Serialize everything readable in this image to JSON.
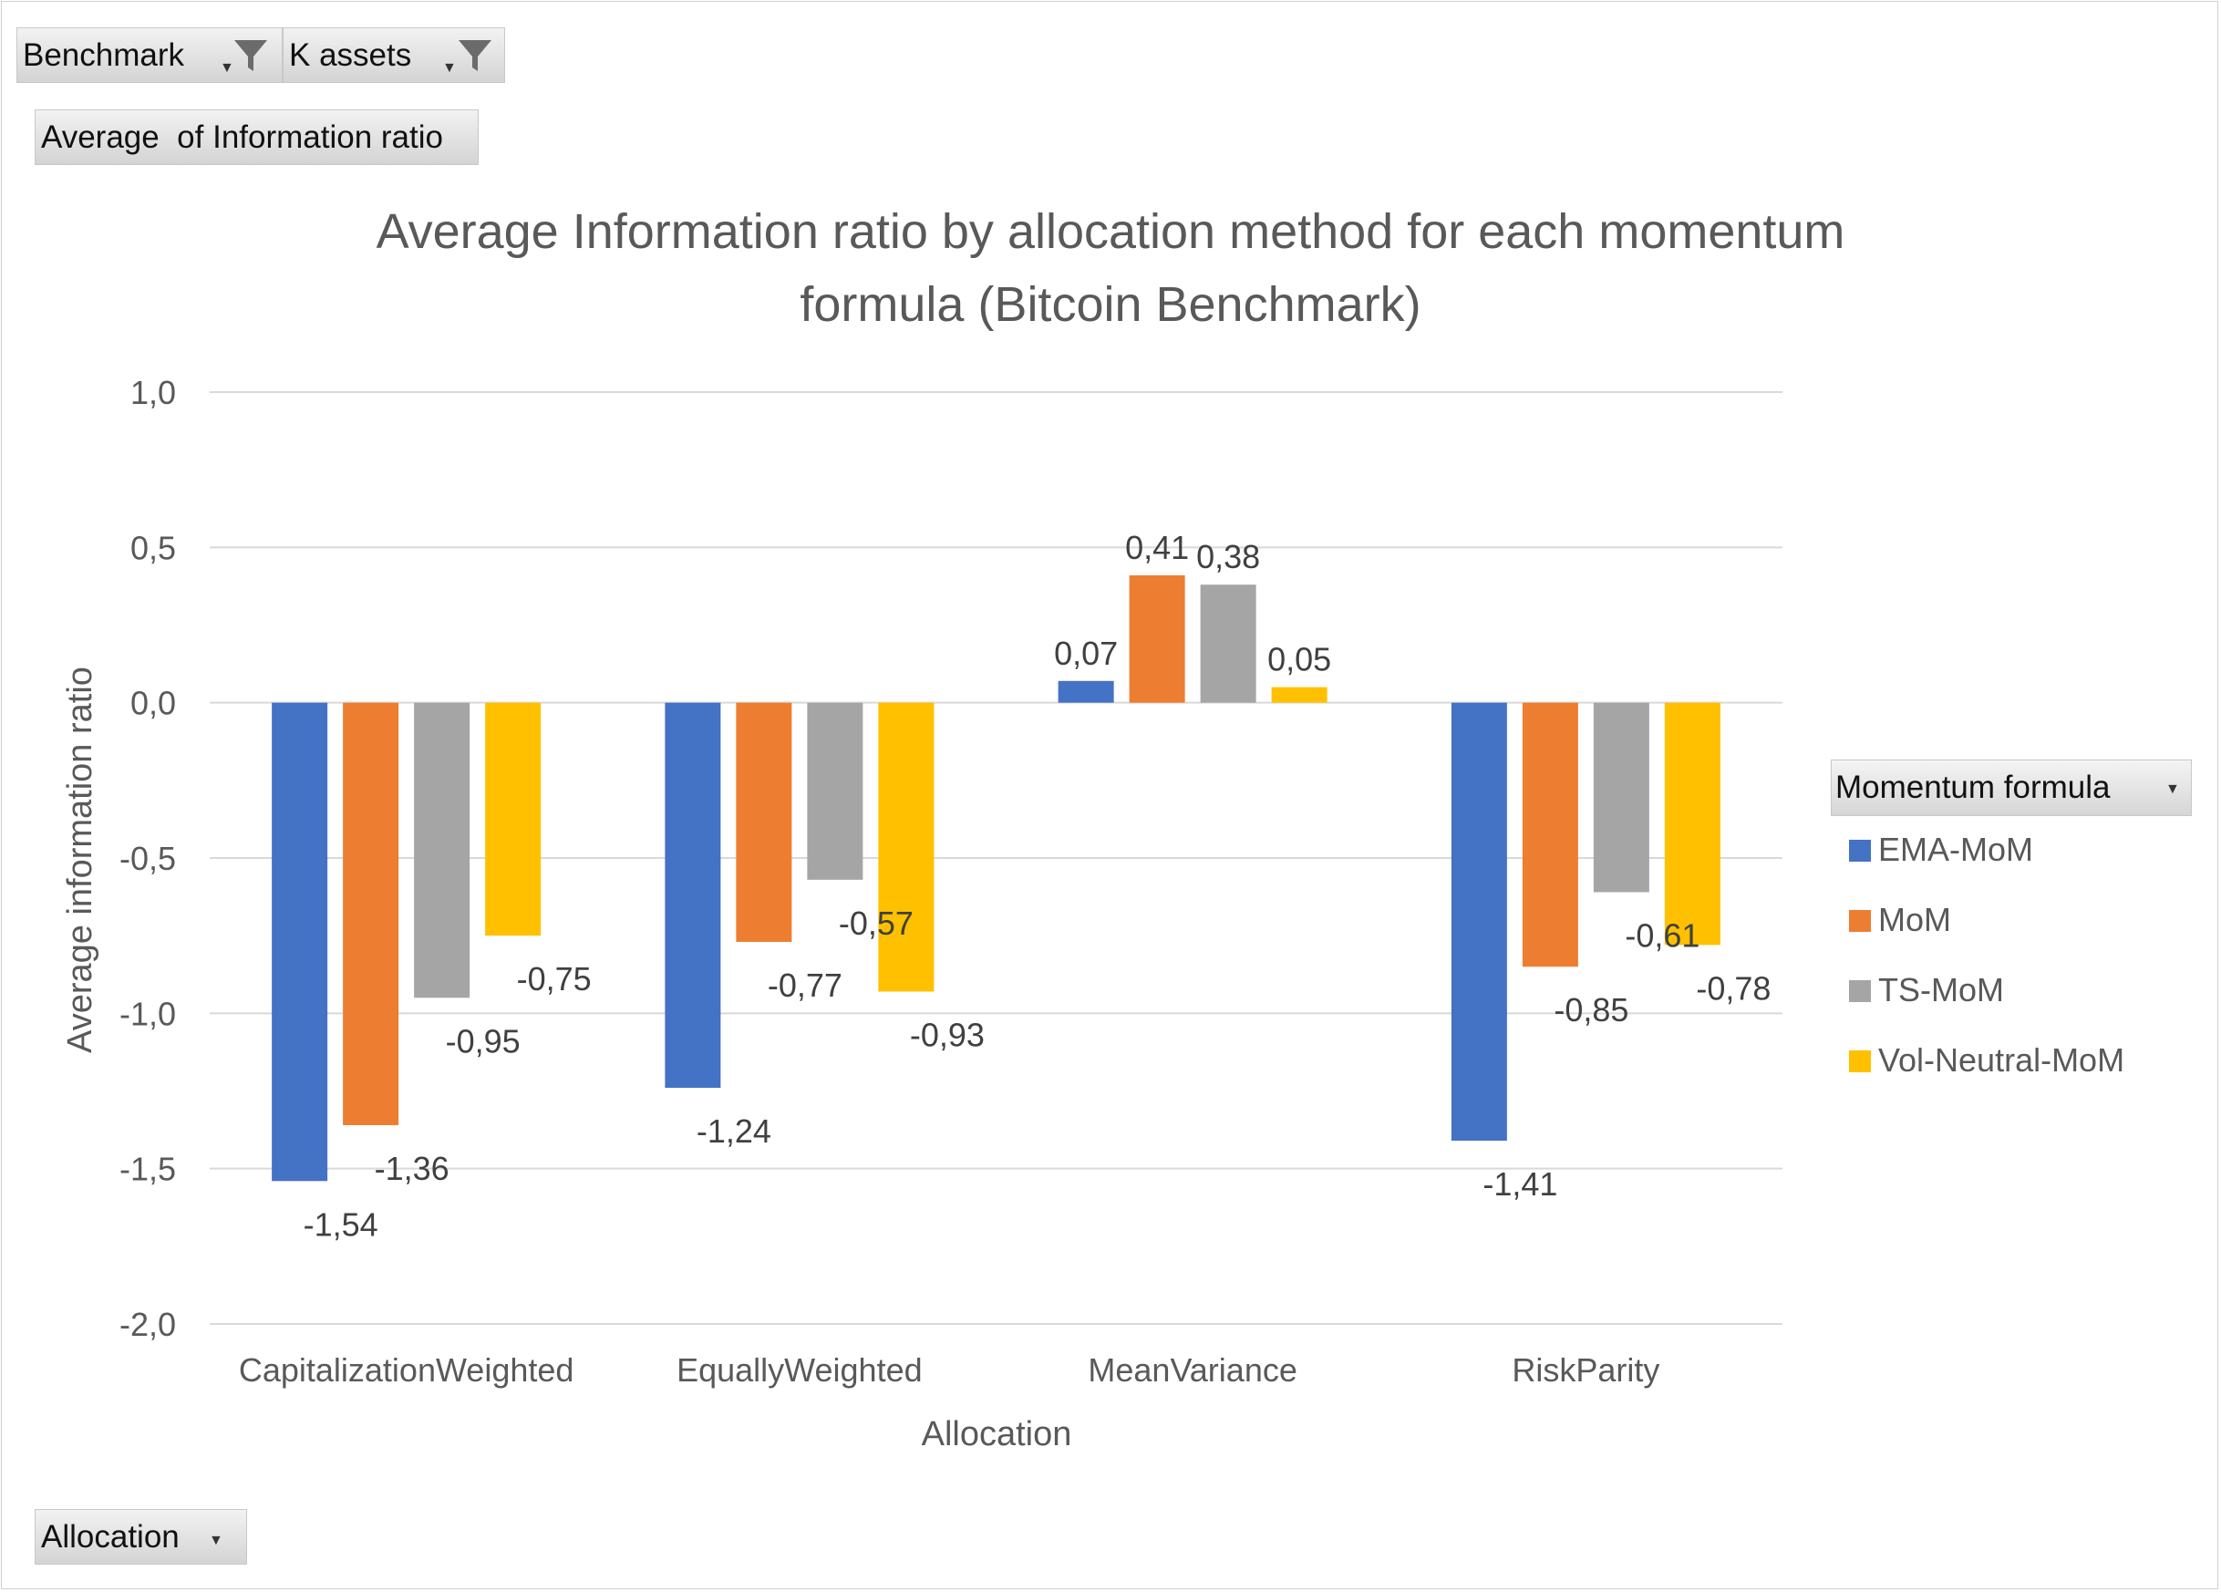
{
  "filters": {
    "benchmark_label": "Benchmark",
    "k_assets_label": "K assets",
    "values_label": "Average  of Information ratio",
    "axis_field_label": "Allocation",
    "legend_field_label": "Momentum formula"
  },
  "icons": {
    "filter": "funnel-icon",
    "dropdown": "dropdown-caret-icon"
  },
  "chart_data": {
    "type": "bar",
    "title": "Average Information ratio by allocation method for each momentum formula (Bitcoin Benchmark)",
    "title_lines": [
      "Average Information ratio by allocation method for each momentum",
      "formula (Bitcoin Benchmark)"
    ],
    "xlabel": "Allocation",
    "ylabel": "Average information ratio",
    "ylim": [
      -2.0,
      1.0
    ],
    "yticks": [
      "1,0",
      "0,5",
      "0,0",
      "-0,5",
      "-1,0",
      "-1,5",
      "-2,0"
    ],
    "ytick_values": [
      1.0,
      0.5,
      0.0,
      -0.5,
      -1.0,
      -1.5,
      -2.0
    ],
    "grid": true,
    "legend_position": "right",
    "categories": [
      "CapitalizationWeighted",
      "EquallyWeighted",
      "MeanVariance",
      "RiskParity"
    ],
    "series": [
      {
        "name": "EMA-MoM",
        "color": "#4472C4",
        "values": [
          -1.54,
          -1.24,
          0.07,
          -1.41
        ],
        "labels": [
          "-1,54",
          "-1,24",
          "0,07",
          "-1,41"
        ]
      },
      {
        "name": "MoM",
        "color": "#ED7D31",
        "values": [
          -1.36,
          -0.77,
          0.41,
          -0.85
        ],
        "labels": [
          "-1,36",
          "-0,77",
          "0,41",
          "-0,85"
        ]
      },
      {
        "name": "TS-MoM",
        "color": "#A5A5A5",
        "values": [
          -0.95,
          -0.57,
          0.38,
          -0.61
        ],
        "labels": [
          "-0,95",
          "-0,57",
          "0,38",
          "-0,61"
        ]
      },
      {
        "name": "Vol-Neutral-MoM",
        "color": "#FFC000",
        "values": [
          -0.75,
          -0.93,
          0.05,
          -0.78
        ],
        "labels": [
          "-0,75",
          "-0,93",
          "0,05",
          "-0,78"
        ]
      }
    ]
  }
}
